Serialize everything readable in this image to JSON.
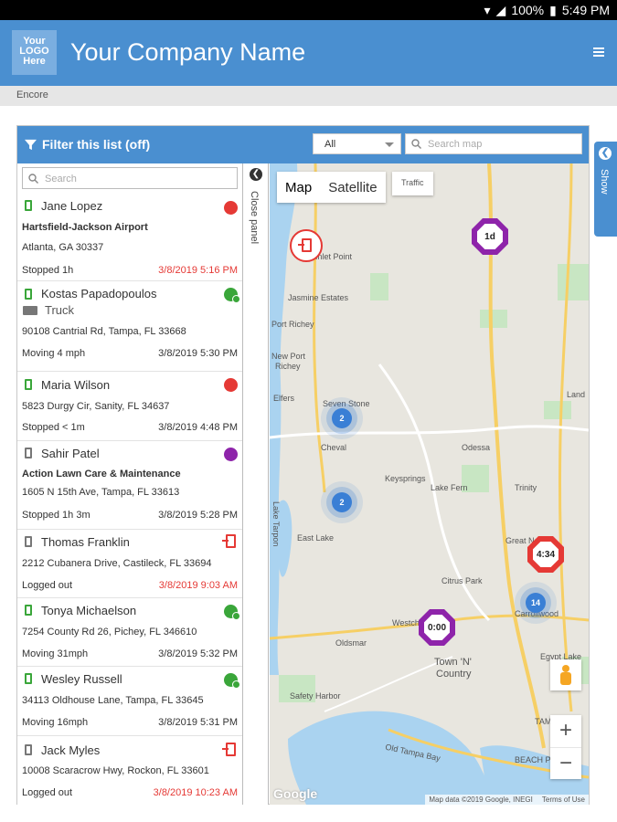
{
  "status_bar": {
    "battery": "100%",
    "time": "5:49 PM"
  },
  "header": {
    "logo_line1": "Your",
    "logo_line2": "LOGO",
    "logo_line3": "Here",
    "title": "Your Company Name"
  },
  "breadcrumb": "Encore",
  "panel": {
    "filter_label": "Filter this list (off)",
    "select_value": "All",
    "search_map_placeholder": "Search map",
    "list_search_placeholder": "Search",
    "close_panel_label": "Close panel",
    "show_label": "Show"
  },
  "items": [
    {
      "name": "Jane Lopez",
      "place": "Hartsfield-Jackson Airport",
      "address": "Atlanta, GA 30337",
      "status": "Stopped 1h",
      "time": "3/8/2019 5:16 PM",
      "indicator": "red"
    },
    {
      "name": "Kostas Papadopoulos",
      "vehicle": "Truck",
      "address": "90108 Cantrial Rd, Tampa, FL 33668",
      "status": "Moving 4 mph",
      "time": "3/8/2019 5:30 PM",
      "indicator": "green"
    },
    {
      "name": "Maria Wilson",
      "address": "5823 Durgy Cir, Sanity, FL 34637",
      "status": "Stopped < 1m",
      "time": "3/8/2019 4:48 PM",
      "indicator": "red"
    },
    {
      "name": "Sahir Patel",
      "place": "Action Lawn Care & Maintenance",
      "address": "1605 N 15th Ave, Tampa, FL 33613",
      "status": "Stopped 1h 3m",
      "time": "3/8/2019 5:28 PM",
      "indicator": "purple"
    },
    {
      "name": "Thomas Franklin",
      "address": "2212 Cubanera Drive, Castileck, FL 33694",
      "status": "Logged out",
      "time": "3/8/2019 9:03 AM",
      "indicator": "logout"
    },
    {
      "name": "Tonya Michaelson",
      "address": "7254 County Rd 26, Pichey, FL 346610",
      "status": "Moving 31mph",
      "time": "3/8/2019 5:32 PM",
      "indicator": "green"
    },
    {
      "name": "Wesley Russell",
      "address": "34113 Oldhouse Lane, Tampa, FL 33645",
      "status": "Moving 16mph",
      "time": "3/8/2019 5:31 PM",
      "indicator": "green"
    },
    {
      "name": "Jack Myles",
      "address": "10008 Scaracrow Hwy, Rockon, FL 33601",
      "status": "Logged out",
      "time": "3/8/2019 10:23 AM",
      "indicator": "logout"
    }
  ],
  "map": {
    "type_map": "Map",
    "type_satellite": "Satellite",
    "traffic": "Traffic",
    "labels": {
      "port_richey_n": "Port Richey",
      "jasmine": "Jasmine Estates",
      "new_port": "New Port",
      "richey": "Richey",
      "elfers": "Elfers",
      "seven_springs": "Seven Stone",
      "cheval": "Cheval",
      "odessa": "Odessa",
      "keysprings": "Keysprings",
      "lake_fern": "Lake Fern",
      "trinity": "Trinity",
      "east_lake": "East Lake",
      "lake_tarpon": "Lake Tarpon",
      "great_north": "Great North",
      "citrus_park": "Citrus Park",
      "westchase": "Westch",
      "town_country1": "Town 'N'",
      "town_country2": "Country",
      "oldsmar": "Oldsmar",
      "carrollwood": "Carrollwood",
      "safety_harbor": "Safety Harbor",
      "tampa": "TAMPA",
      "old_tampa_bay": "Old Tampa Bay",
      "beach_park": "BEACH PARK",
      "egypt_lake": "Egypt Lake",
      "land": "Land",
      "inlet_point": "Inlet Point"
    },
    "clusters": [
      "2",
      "2",
      "14"
    ],
    "markers": {
      "m1": "1d",
      "m2": "4:34",
      "m3": "0:00"
    },
    "google": "Google",
    "map_data": "Map data ©2019 Google, INEGI",
    "terms": "Terms of Use",
    "zoom_in": "+",
    "zoom_out": "−"
  },
  "colors": {
    "brand": "#4a8fd0",
    "red": "#e53935",
    "purple": "#8e24aa",
    "green": "#3aa63a",
    "cluster": "#3a7fd5"
  }
}
